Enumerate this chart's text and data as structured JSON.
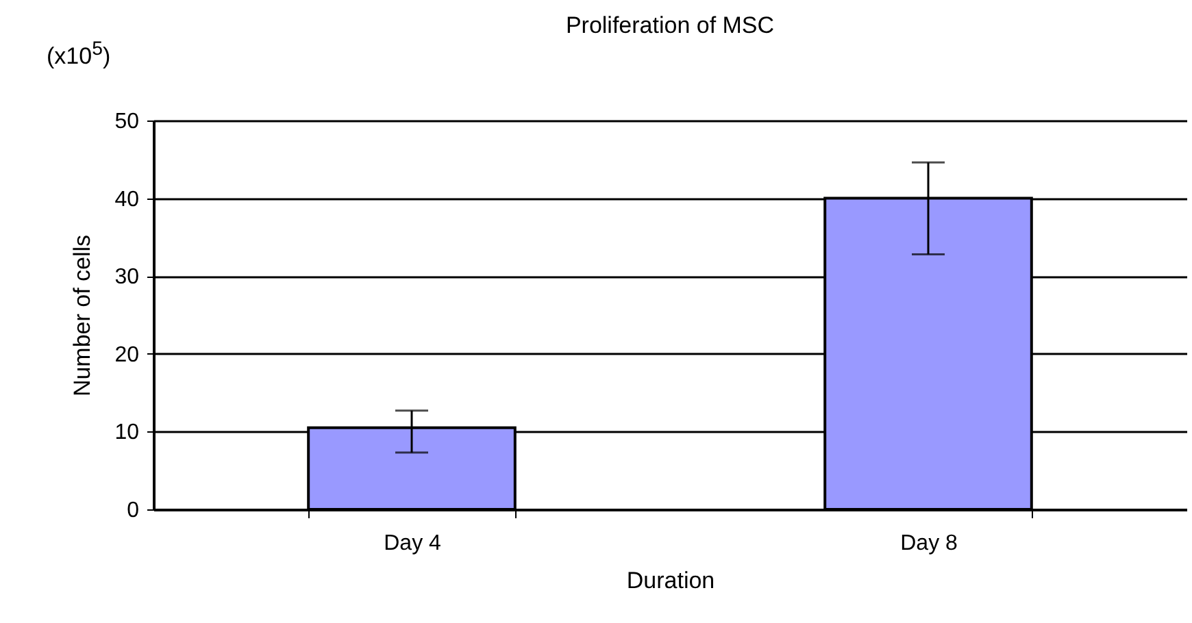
{
  "chart_data": {
    "type": "bar",
    "title": "Proliferation of MSC",
    "xlabel": "Duration",
    "ylabel": "Number of cells",
    "annotations": [
      "(x10$^{5}$)"
    ],
    "categories": [
      "Day 4",
      "Day 8"
    ],
    "series": [
      {
        "color": "#9999ff",
        "values": [
          10.5,
          40
        ],
        "errors": [
          [
            7.3,
            12.7
          ],
          [
            32.8,
            44.6
          ]
        ]
      }
    ],
    "ylim": [
      0,
      50
    ],
    "yticks": [
      0,
      10,
      20,
      30,
      40,
      50
    ],
    "grid": "y"
  }
}
